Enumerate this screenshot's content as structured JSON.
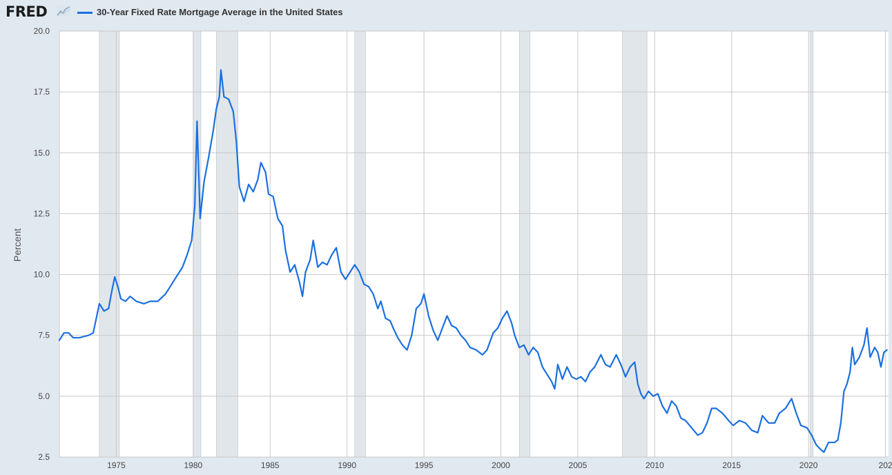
{
  "header": {
    "logo_text": "FRED",
    "logo_icon": "trend-line-icon"
  },
  "colors": {
    "series": "#1a6fdf",
    "recession": "#e1e6ea",
    "background": "#e1e9f0",
    "plot_bg": "#ffffff",
    "grid": "#c8c8c8"
  },
  "chart_data": {
    "type": "line",
    "title": "",
    "ylabel": "Percent",
    "xlabel": "",
    "xlim": [
      1971.3,
      2025.2
    ],
    "ylim": [
      2.5,
      20.0
    ],
    "grid": true,
    "legend_position": "top-left",
    "y_ticks": [
      "2.5",
      "5.0",
      "7.5",
      "10.0",
      "12.5",
      "15.0",
      "17.5",
      "20.0"
    ],
    "x_ticks": [
      "1975",
      "1980",
      "1985",
      "1990",
      "1995",
      "2000",
      "2005",
      "2010",
      "2015",
      "2020",
      "202"
    ],
    "recessions": [
      [
        1973.9,
        1975.2
      ],
      [
        1980.0,
        1980.5
      ],
      [
        1981.5,
        1982.9
      ],
      [
        1990.5,
        1991.2
      ],
      [
        2001.2,
        2001.9
      ],
      [
        2007.9,
        2009.5
      ],
      [
        2020.1,
        2020.3
      ]
    ],
    "series": [
      {
        "name": "30-Year Fixed Rate Mortgage Average in the United States",
        "points": [
          [
            1971.3,
            7.3
          ],
          [
            1971.6,
            7.6
          ],
          [
            1971.9,
            7.6
          ],
          [
            1972.2,
            7.4
          ],
          [
            1972.6,
            7.4
          ],
          [
            1973.2,
            7.5
          ],
          [
            1973.5,
            7.6
          ],
          [
            1973.7,
            8.2
          ],
          [
            1973.9,
            8.8
          ],
          [
            1974.2,
            8.5
          ],
          [
            1974.5,
            8.6
          ],
          [
            1974.7,
            9.3
          ],
          [
            1974.9,
            9.9
          ],
          [
            1975.1,
            9.5
          ],
          [
            1975.3,
            9.0
          ],
          [
            1975.6,
            8.9
          ],
          [
            1975.9,
            9.1
          ],
          [
            1976.3,
            8.9
          ],
          [
            1976.8,
            8.8
          ],
          [
            1977.2,
            8.9
          ],
          [
            1977.7,
            8.9
          ],
          [
            1978.2,
            9.2
          ],
          [
            1978.6,
            9.6
          ],
          [
            1978.9,
            9.9
          ],
          [
            1979.3,
            10.3
          ],
          [
            1979.6,
            10.8
          ],
          [
            1979.9,
            11.4
          ],
          [
            1980.1,
            12.8
          ],
          [
            1980.25,
            16.3
          ],
          [
            1980.45,
            12.3
          ],
          [
            1980.7,
            13.8
          ],
          [
            1981.0,
            14.8
          ],
          [
            1981.3,
            15.9
          ],
          [
            1981.5,
            16.8
          ],
          [
            1981.7,
            17.3
          ],
          [
            1981.8,
            18.4
          ],
          [
            1982.0,
            17.3
          ],
          [
            1982.3,
            17.2
          ],
          [
            1982.6,
            16.7
          ],
          [
            1982.8,
            15.5
          ],
          [
            1983.0,
            13.6
          ],
          [
            1983.3,
            13.0
          ],
          [
            1983.6,
            13.7
          ],
          [
            1983.9,
            13.4
          ],
          [
            1984.2,
            13.9
          ],
          [
            1984.4,
            14.6
          ],
          [
            1984.7,
            14.2
          ],
          [
            1984.9,
            13.3
          ],
          [
            1985.2,
            13.2
          ],
          [
            1985.5,
            12.3
          ],
          [
            1985.8,
            12.0
          ],
          [
            1986.0,
            11.0
          ],
          [
            1986.3,
            10.1
          ],
          [
            1986.6,
            10.4
          ],
          [
            1986.9,
            9.7
          ],
          [
            1987.1,
            9.1
          ],
          [
            1987.3,
            10.1
          ],
          [
            1987.6,
            10.6
          ],
          [
            1987.8,
            11.4
          ],
          [
            1988.1,
            10.3
          ],
          [
            1988.4,
            10.5
          ],
          [
            1988.7,
            10.4
          ],
          [
            1989.0,
            10.8
          ],
          [
            1989.3,
            11.1
          ],
          [
            1989.6,
            10.1
          ],
          [
            1989.9,
            9.8
          ],
          [
            1990.2,
            10.1
          ],
          [
            1990.5,
            10.4
          ],
          [
            1990.8,
            10.1
          ],
          [
            1991.1,
            9.6
          ],
          [
            1991.4,
            9.5
          ],
          [
            1991.7,
            9.2
          ],
          [
            1992.0,
            8.6
          ],
          [
            1992.2,
            8.9
          ],
          [
            1992.5,
            8.2
          ],
          [
            1992.8,
            8.1
          ],
          [
            1993.0,
            7.8
          ],
          [
            1993.3,
            7.4
          ],
          [
            1993.6,
            7.1
          ],
          [
            1993.9,
            6.9
          ],
          [
            1994.2,
            7.5
          ],
          [
            1994.5,
            8.6
          ],
          [
            1994.8,
            8.8
          ],
          [
            1995.0,
            9.2
          ],
          [
            1995.3,
            8.3
          ],
          [
            1995.6,
            7.7
          ],
          [
            1995.9,
            7.3
          ],
          [
            1996.2,
            7.8
          ],
          [
            1996.5,
            8.3
          ],
          [
            1996.8,
            7.9
          ],
          [
            1997.1,
            7.8
          ],
          [
            1997.4,
            7.5
          ],
          [
            1997.7,
            7.3
          ],
          [
            1998.0,
            7.0
          ],
          [
            1998.4,
            6.9
          ],
          [
            1998.8,
            6.7
          ],
          [
            1999.1,
            6.9
          ],
          [
            1999.5,
            7.6
          ],
          [
            1999.8,
            7.8
          ],
          [
            2000.1,
            8.2
          ],
          [
            2000.4,
            8.5
          ],
          [
            2000.7,
            8.0
          ],
          [
            2000.9,
            7.5
          ],
          [
            2001.2,
            7.0
          ],
          [
            2001.5,
            7.1
          ],
          [
            2001.8,
            6.7
          ],
          [
            2002.1,
            7.0
          ],
          [
            2002.4,
            6.8
          ],
          [
            2002.7,
            6.2
          ],
          [
            2003.0,
            5.9
          ],
          [
            2003.3,
            5.6
          ],
          [
            2003.5,
            5.3
          ],
          [
            2003.7,
            6.3
          ],
          [
            2004.0,
            5.7
          ],
          [
            2004.3,
            6.2
          ],
          [
            2004.6,
            5.8
          ],
          [
            2004.9,
            5.7
          ],
          [
            2005.2,
            5.8
          ],
          [
            2005.5,
            5.6
          ],
          [
            2005.8,
            6.0
          ],
          [
            2006.1,
            6.2
          ],
          [
            2006.5,
            6.7
          ],
          [
            2006.8,
            6.3
          ],
          [
            2007.1,
            6.2
          ],
          [
            2007.5,
            6.7
          ],
          [
            2007.8,
            6.3
          ],
          [
            2008.1,
            5.8
          ],
          [
            2008.4,
            6.2
          ],
          [
            2008.7,
            6.4
          ],
          [
            2008.9,
            5.5
          ],
          [
            2009.1,
            5.1
          ],
          [
            2009.3,
            4.9
          ],
          [
            2009.6,
            5.2
          ],
          [
            2009.9,
            5.0
          ],
          [
            2010.2,
            5.1
          ],
          [
            2010.5,
            4.6
          ],
          [
            2010.8,
            4.3
          ],
          [
            2011.1,
            4.8
          ],
          [
            2011.4,
            4.6
          ],
          [
            2011.7,
            4.1
          ],
          [
            2012.0,
            4.0
          ],
          [
            2012.4,
            3.7
          ],
          [
            2012.8,
            3.4
          ],
          [
            2013.1,
            3.5
          ],
          [
            2013.4,
            3.9
          ],
          [
            2013.7,
            4.5
          ],
          [
            2014.0,
            4.5
          ],
          [
            2014.4,
            4.3
          ],
          [
            2014.8,
            4.0
          ],
          [
            2015.1,
            3.8
          ],
          [
            2015.5,
            4.0
          ],
          [
            2015.9,
            3.9
          ],
          [
            2016.3,
            3.6
          ],
          [
            2016.7,
            3.5
          ],
          [
            2017.0,
            4.2
          ],
          [
            2017.4,
            3.9
          ],
          [
            2017.8,
            3.9
          ],
          [
            2018.1,
            4.3
          ],
          [
            2018.5,
            4.5
          ],
          [
            2018.9,
            4.9
          ],
          [
            2019.2,
            4.3
          ],
          [
            2019.5,
            3.8
          ],
          [
            2019.9,
            3.7
          ],
          [
            2020.2,
            3.4
          ],
          [
            2020.5,
            3.0
          ],
          [
            2020.8,
            2.8
          ],
          [
            2021.0,
            2.7
          ],
          [
            2021.3,
            3.1
          ],
          [
            2021.7,
            3.1
          ],
          [
            2021.9,
            3.2
          ],
          [
            2022.1,
            3.9
          ],
          [
            2022.3,
            5.2
          ],
          [
            2022.5,
            5.5
          ],
          [
            2022.7,
            6.0
          ],
          [
            2022.85,
            7.0
          ],
          [
            2023.0,
            6.3
          ],
          [
            2023.3,
            6.6
          ],
          [
            2023.6,
            7.1
          ],
          [
            2023.8,
            7.8
          ],
          [
            2024.0,
            6.6
          ],
          [
            2024.3,
            7.0
          ],
          [
            2024.5,
            6.8
          ],
          [
            2024.7,
            6.2
          ],
          [
            2024.9,
            6.8
          ],
          [
            2025.1,
            6.9
          ]
        ]
      }
    ]
  }
}
